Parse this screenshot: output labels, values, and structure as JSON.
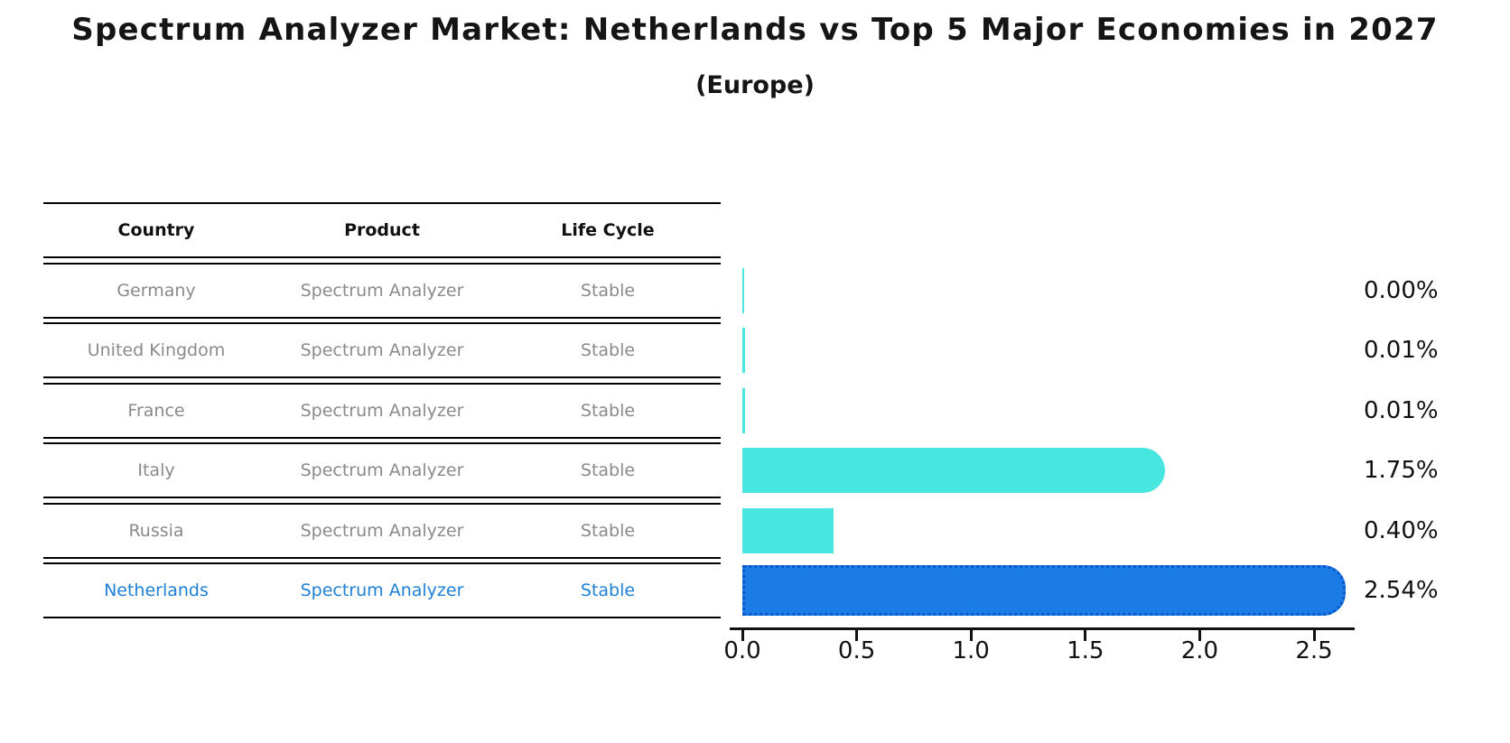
{
  "header": {
    "title": "Spectrum Analyzer Market: Netherlands vs Top 5 Major Economies in 2027",
    "subtitle": "(Europe)"
  },
  "table": {
    "columns": [
      "Country",
      "Product",
      "Life Cycle"
    ],
    "rows": [
      {
        "country": "Germany",
        "product": "Spectrum Analyzer",
        "life_cycle": "Stable",
        "highlight": false
      },
      {
        "country": "United Kingdom",
        "product": "Spectrum Analyzer",
        "life_cycle": "Stable",
        "highlight": false
      },
      {
        "country": "France",
        "product": "Spectrum Analyzer",
        "life_cycle": "Stable",
        "highlight": false
      },
      {
        "country": "Italy",
        "product": "Spectrum Analyzer",
        "life_cycle": "Stable",
        "highlight": false
      },
      {
        "country": "Russia",
        "product": "Spectrum Analyzer",
        "life_cycle": "Stable",
        "highlight": false
      },
      {
        "country": "Netherlands",
        "product": "Spectrum Analyzer",
        "life_cycle": "Stable",
        "highlight": true
      }
    ]
  },
  "chart_data": {
    "type": "bar",
    "orientation": "horizontal",
    "title": "Spectrum Analyzer Market: Netherlands vs Top 5 Major Economies in 2027",
    "subtitle": "(Europe)",
    "categories": [
      "Germany",
      "United Kingdom",
      "France",
      "Italy",
      "Russia",
      "Netherlands"
    ],
    "values": [
      0.0,
      0.01,
      0.01,
      1.75,
      0.4,
      2.54
    ],
    "value_labels": [
      "0.00%",
      "0.01%",
      "0.01%",
      "1.75%",
      "0.40%",
      "2.54%"
    ],
    "highlight_index": 5,
    "xtick_labels": [
      "0.0",
      "0.5",
      "1.0",
      "1.5",
      "2.0",
      "2.5"
    ],
    "xlim": [
      0,
      2.68
    ],
    "grid": false,
    "legend": false,
    "colors": {
      "bar": "#47E6E0",
      "highlight_bar": "#1B7CE8",
      "highlight_border": "#0A58C8",
      "highlight_text": "#1E7FD6",
      "row_text": "#8a8a8a",
      "axis_text": "#111111"
    }
  }
}
